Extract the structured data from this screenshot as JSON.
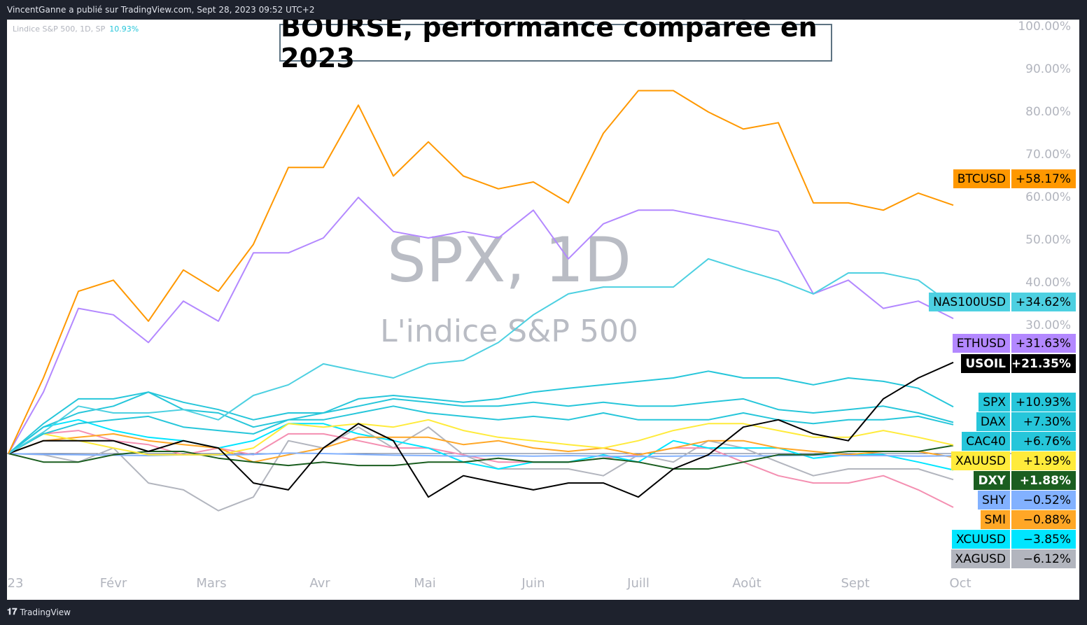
{
  "header": {
    "publisher_text": "VincentGanne a publié sur TradingView.com, Sept 28, 2023 09:52 UTC+2"
  },
  "legend": {
    "label": "Lindice S&P 500, 1D, SP",
    "value": "10.93%"
  },
  "footer": {
    "logo_text": "TradingView"
  },
  "watermark": {
    "symbol": "SPX, 1D",
    "description": "L'indice S&P 500"
  },
  "chart_data": {
    "type": "line",
    "title": "BOURSE, performance comparée en 2023",
    "xlabel": "",
    "ylabel": "%",
    "x": [
      2,
      12,
      22,
      32,
      42,
      52,
      62,
      72,
      82,
      92,
      102,
      112,
      122,
      132,
      142,
      152,
      162,
      172,
      182,
      192,
      202,
      212,
      222,
      232,
      242,
      252,
      262,
      272
    ],
    "x_unit": "day of year 2023",
    "xticks": [
      {
        "label": "23",
        "day": 1
      },
      {
        "label": "Févr",
        "day": 32
      },
      {
        "label": "Mars",
        "day": 60
      },
      {
        "label": "Avr",
        "day": 91
      },
      {
        "label": "Mai",
        "day": 121
      },
      {
        "label": "Juin",
        "day": 152
      },
      {
        "label": "Juill",
        "day": 182
      },
      {
        "label": "Août",
        "day": 213
      },
      {
        "label": "Sept",
        "day": 244
      },
      {
        "label": "Oct",
        "day": 274
      }
    ],
    "yticks": [
      {
        "label": "100.00%",
        "value": 100
      },
      {
        "label": "90.00%",
        "value": 90
      },
      {
        "label": "80.00%",
        "value": 80
      },
      {
        "label": "70.00%",
        "value": 70
      },
      {
        "label": "60.00%",
        "value": 60
      },
      {
        "label": "50.00%",
        "value": 50
      },
      {
        "label": "40.00%",
        "value": 40
      },
      {
        "label": "30.00%",
        "value": 30
      }
    ],
    "ylim": [
      -27,
      100
    ],
    "series": [
      {
        "name": "XAGUSD",
        "last": "−6.12%",
        "color": "#b2b5be",
        "text": "#000",
        "values": [
          0,
          -0.3,
          -2.0,
          1.3,
          -6.9,
          -8.5,
          -13.4,
          -10.2,
          3.0,
          1.3,
          6.2,
          1.3,
          6.2,
          -0.3,
          -3.6,
          -3.6,
          -3.6,
          -5.2,
          -0.3,
          -2.0,
          3.0,
          1.3,
          -2.0,
          -5.2,
          -3.6,
          -3.6,
          -3.6,
          -6.12
        ]
      },
      {
        "name": "",
        "last": "",
        "color": "#f48fb1",
        "text": "#000",
        "values": [
          0,
          4.6,
          5.4,
          3.0,
          2.1,
          -0.3,
          1.3,
          -0.3,
          4.6,
          4.6,
          3.0,
          1.3,
          1.3,
          -0.3,
          -2.0,
          -2.0,
          -2.0,
          -1.1,
          -0.3,
          1.3,
          1.3,
          -2.0,
          -5.2,
          -6.9,
          -6.9,
          -5.2,
          -8.5,
          -12.6
        ]
      },
      {
        "name": "XCUUSD",
        "last": "−3.85%",
        "color": "#00e5ff",
        "text": "#000",
        "values": [
          0,
          6.2,
          7.9,
          5.4,
          3.8,
          3.0,
          1.3,
          3.0,
          7.0,
          7.0,
          4.6,
          3.0,
          1.3,
          -2.0,
          -3.6,
          -2.0,
          -2.0,
          -0.3,
          -2.0,
          3.0,
          1.3,
          1.3,
          1.3,
          -1.1,
          -0.3,
          -0.3,
          -2.0,
          -3.85
        ]
      },
      {
        "name": "SMI",
        "last": "−0.88%",
        "color": "#ffa726",
        "text": "#000",
        "values": [
          0,
          3.0,
          3.8,
          4.6,
          3.0,
          2.1,
          1.3,
          -2.0,
          -0.3,
          1.3,
          3.8,
          3.8,
          3.8,
          2.1,
          3.0,
          1.3,
          0.5,
          1.3,
          -0.3,
          1.3,
          3.0,
          3.0,
          1.3,
          0.5,
          -0.3,
          0.5,
          0.5,
          -0.88
        ]
      },
      {
        "name": "SHY",
        "last": "−0.52%",
        "color": "#82b1ff",
        "text": "#000",
        "values": [
          0,
          -0.2,
          -0.3,
          -0.4,
          -0.5,
          -0.3,
          -0.4,
          -0.2,
          0.1,
          0.0,
          -0.2,
          -0.4,
          -0.5,
          -0.6,
          -0.5,
          -0.6,
          -0.5,
          -0.6,
          -0.7,
          -0.6,
          -0.5,
          -0.6,
          -0.5,
          -0.4,
          -0.5,
          -0.5,
          -0.6,
          -0.52
        ]
      },
      {
        "name": "DXY",
        "last": "+1.88%",
        "color": "#1b5e20",
        "text": "#fff",
        "values": [
          0,
          -2.0,
          -2.0,
          -0.3,
          0.5,
          0.5,
          -1.1,
          -2.0,
          -2.8,
          -2.0,
          -2.8,
          -2.8,
          -2.0,
          -2.0,
          -1.1,
          -2.0,
          -2.0,
          -1.1,
          -2.0,
          -3.6,
          -3.6,
          -2.0,
          -0.3,
          -0.3,
          0.5,
          0.5,
          0.5,
          1.88
        ]
      },
      {
        "name": "XAUUSD",
        "last": "+1.99%",
        "color": "#ffeb3b",
        "text": "#000",
        "values": [
          0,
          4.6,
          3.0,
          1.3,
          -0.3,
          -0.3,
          -0.3,
          1.3,
          7.0,
          6.2,
          7.0,
          6.2,
          7.9,
          5.4,
          3.8,
          3.0,
          2.1,
          1.3,
          3.0,
          5.4,
          7.0,
          7.0,
          5.4,
          3.8,
          3.8,
          5.4,
          3.8,
          1.99
        ]
      },
      {
        "name": "CAC40",
        "last": "+6.76%",
        "color": "#26c6da",
        "text": "#000",
        "values": [
          0,
          6.2,
          9.5,
          11.1,
          14.4,
          10.3,
          9.5,
          6.2,
          7.9,
          7.9,
          9.5,
          11.1,
          9.5,
          8.7,
          7.9,
          8.7,
          7.9,
          9.5,
          7.9,
          7.9,
          7.9,
          9.5,
          7.9,
          7.0,
          7.9,
          7.9,
          8.7,
          6.76
        ]
      },
      {
        "name": "DAX",
        "last": "+7.30%",
        "color": "#26c6da",
        "text": "#000",
        "values": [
          0,
          7.0,
          12.8,
          12.8,
          14.4,
          12.0,
          10.3,
          7.9,
          9.5,
          9.5,
          11.1,
          12.8,
          12.0,
          11.1,
          11.1,
          12.0,
          11.1,
          12.0,
          11.1,
          11.1,
          12.0,
          12.8,
          10.3,
          9.5,
          10.3,
          11.1,
          9.5,
          7.3
        ]
      },
      {
        "name": "SPX",
        "last": "+10.93%",
        "color": "#26c6da",
        "text": "#000",
        "values": [
          0,
          4.6,
          7.0,
          7.9,
          8.7,
          6.2,
          5.4,
          4.6,
          7.9,
          9.5,
          12.8,
          13.6,
          12.8,
          12.0,
          12.8,
          14.4,
          15.3,
          16.1,
          16.9,
          17.7,
          19.3,
          17.7,
          17.7,
          16.1,
          17.7,
          16.9,
          15.3,
          10.93
        ]
      },
      {
        "name": "USOIL",
        "last": "+21.35%",
        "color": "#000000",
        "text": "#fff",
        "values": [
          0,
          3.0,
          3.0,
          3.0,
          0.5,
          3.0,
          1.3,
          -6.9,
          -8.5,
          1.3,
          7.0,
          3.0,
          -10.2,
          -5.2,
          -6.9,
          -8.5,
          -6.9,
          -6.9,
          -10.2,
          -3.6,
          -0.3,
          6.2,
          7.9,
          4.6,
          3.0,
          12.8,
          17.7,
          21.35
        ]
      },
      {
        "name": "ETHUSD",
        "last": "+31.63%",
        "color": "#b388ff",
        "text": "#000",
        "values": [
          0,
          14.4,
          34.0,
          32.5,
          26.0,
          35.7,
          31.0,
          47.0,
          47.0,
          50.5,
          60.0,
          52.0,
          50.5,
          52.0,
          50.5,
          57.0,
          45.6,
          53.8,
          57.0,
          57.0,
          55.4,
          53.8,
          52.0,
          37.4,
          40.6,
          34.0,
          35.7,
          31.63
        ]
      },
      {
        "name": "NAS100USD",
        "last": "+34.62%",
        "color": "#4dd0e1",
        "text": "#000",
        "values": [
          0,
          5.0,
          11.1,
          9.5,
          9.5,
          10.3,
          7.9,
          13.6,
          16.1,
          21.0,
          19.3,
          17.7,
          21.0,
          21.8,
          26.0,
          32.5,
          37.4,
          39.0,
          39.0,
          39.0,
          45.6,
          43.0,
          40.6,
          37.4,
          42.3,
          42.3,
          40.6,
          34.62
        ]
      },
      {
        "name": "BTCUSD",
        "last": "+58.17%",
        "color": "#ff9800",
        "text": "#000",
        "values": [
          0,
          17.7,
          38.0,
          40.6,
          31.0,
          43.0,
          38.0,
          49.0,
          67.0,
          67.0,
          81.6,
          65.0,
          73.0,
          65.0,
          62.0,
          63.6,
          58.7,
          75.0,
          85.0,
          85.0,
          80.0,
          76.0,
          77.5,
          58.7,
          58.7,
          57.0,
          61.0,
          58.17
        ]
      }
    ]
  }
}
